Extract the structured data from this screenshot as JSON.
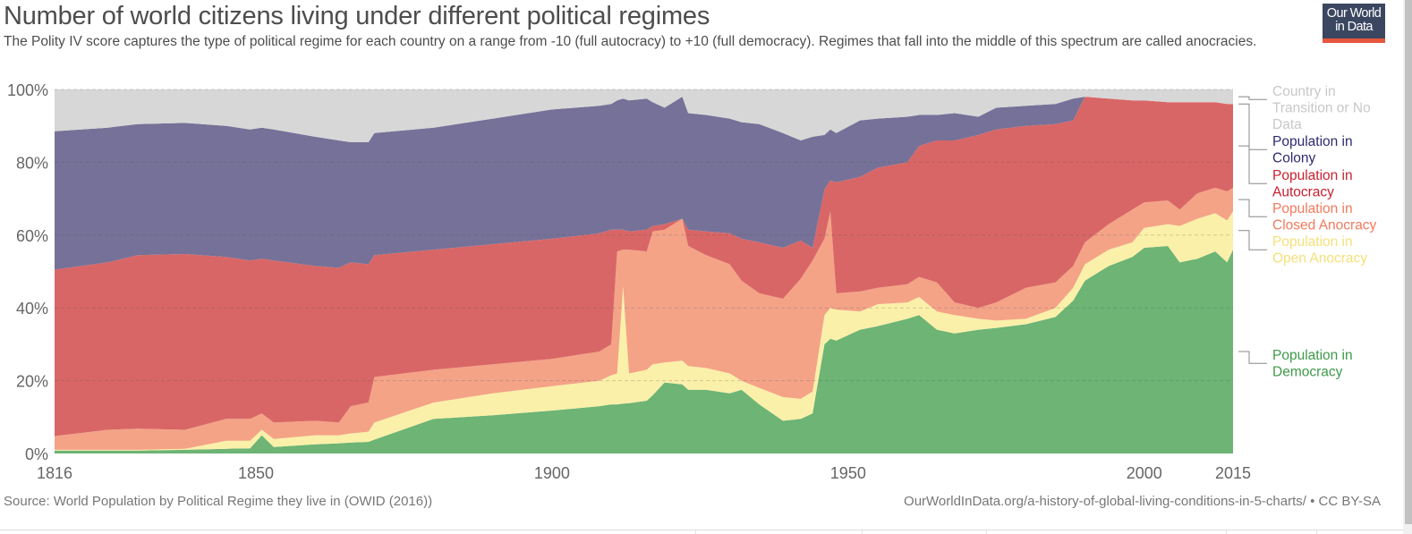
{
  "header": {
    "title": "Number of world citizens living under different political regimes",
    "subtitle": "The Polity IV score captures the type of political regime for each country on a range from -10 (full autocracy) to +10 (full democracy). Regimes that fall into the middle of this spectrum are called anocracies.",
    "logo_line1": "Our World",
    "logo_line2": "in Data",
    "logo_colors": {
      "background": "#3b4761",
      "bar": "#e5563f"
    }
  },
  "footer": {
    "source": "Source: World Population by Political Regime they live in (OWID (2016))",
    "credit": "OurWorldInData.org/a-history-of-global-living-conditions-in-5-charts/ • CC BY-SA"
  },
  "chart_data": {
    "type": "area",
    "stacked": true,
    "relative": true,
    "title": "Number of world citizens living under different political regimes",
    "xlabel": "",
    "ylabel": "",
    "xlim": [
      1816,
      2015
    ],
    "ylim": [
      0,
      100
    ],
    "grid": true,
    "legend_position": "right",
    "x_ticks": [
      {
        "value": 1816,
        "label": "1816"
      },
      {
        "value": 1850,
        "label": "1850"
      },
      {
        "value": 1900,
        "label": "1900"
      },
      {
        "value": 1950,
        "label": "1950"
      },
      {
        "value": 2000,
        "label": "2000"
      },
      {
        "value": 2015,
        "label": "2015"
      }
    ],
    "y_ticks": [
      {
        "value": 0,
        "label": "0%"
      },
      {
        "value": 20,
        "label": "20%"
      },
      {
        "value": 40,
        "label": "40%"
      },
      {
        "value": 60,
        "label": "60%"
      },
      {
        "value": 80,
        "label": "80%"
      },
      {
        "value": 100,
        "label": "100%"
      }
    ],
    "x": [
      1816,
      1825,
      1830,
      1838,
      1845,
      1849,
      1851,
      1853,
      1860,
      1864,
      1866,
      1869,
      1870,
      1880,
      1890,
      1900,
      1908,
      1910,
      1911,
      1912,
      1913,
      1916,
      1917,
      1919,
      1922,
      1923,
      1926,
      1930,
      1932,
      1935,
      1939,
      1942,
      1944,
      1946,
      1947,
      1948,
      1952,
      1955,
      1960,
      1962,
      1965,
      1968,
      1972,
      1975,
      1980,
      1985,
      1988,
      1990,
      1994,
      1998,
      2000,
      2004,
      2006,
      2009,
      2012,
      2014,
      2015
    ],
    "series": [
      {
        "name": "Population in Democracy",
        "legend": [
          "Population in",
          "Democracy"
        ],
        "color": "#6db475",
        "label_color": "#3e9a4a",
        "values": [
          0.8,
          0.8,
          0.8,
          1.0,
          1.3,
          1.4,
          5.0,
          1.8,
          2.5,
          2.8,
          3.0,
          3.2,
          3.8,
          9.5,
          10.5,
          11.8,
          13.0,
          13.5,
          13.5,
          13.7,
          13.8,
          14.5,
          16.0,
          19.5,
          19.0,
          17.5,
          17.5,
          16.5,
          17.5,
          13.5,
          9.0,
          9.5,
          11.0,
          30.0,
          31.5,
          31.0,
          34.0,
          35.0,
          37.0,
          38.0,
          34.0,
          33.0,
          34.0,
          34.5,
          35.5,
          37.5,
          42.0,
          47.5,
          51.5,
          54.0,
          56.5,
          57.0,
          52.5,
          53.5,
          55.5,
          52.5,
          56.0
        ]
      },
      {
        "name": "Population in Open Anocracy",
        "legend": [
          "Population in",
          "Open Anocracy"
        ],
        "color": "#fbf0a9",
        "label_color": "#f5e07a",
        "values": [
          0.2,
          0.2,
          0.2,
          0.3,
          2.2,
          2.1,
          1.5,
          2.2,
          2.5,
          2.2,
          2.5,
          2.8,
          4.7,
          4.5,
          6.0,
          6.7,
          7.0,
          8.0,
          8.5,
          32.3,
          8.2,
          8.5,
          8.5,
          5.5,
          6.5,
          6.5,
          6.0,
          5.5,
          2.5,
          4.5,
          6.5,
          5.5,
          6.0,
          8.0,
          8.5,
          8.5,
          5.0,
          6.0,
          4.5,
          5.0,
          5.0,
          5.0,
          3.0,
          2.0,
          1.5,
          2.5,
          3.5,
          4.5,
          4.5,
          4.0,
          5.5,
          6.0,
          10.0,
          11.0,
          10.5,
          11.5,
          10.5
        ]
      },
      {
        "name": "Population in Closed Anocracy",
        "legend": [
          "Population in",
          "Closed Anocracy"
        ],
        "color": "#f4a387",
        "label_color": "#f17a5d",
        "values": [
          3.8,
          5.5,
          5.8,
          5.2,
          6.0,
          6.0,
          4.5,
          4.5,
          4.0,
          3.5,
          7.5,
          8.0,
          12.5,
          9.0,
          8.0,
          7.5,
          8.0,
          8.5,
          33.5,
          10.0,
          34.0,
          32.5,
          36.5,
          36.5,
          39.0,
          33.0,
          31.0,
          30.0,
          27.5,
          26.0,
          27.0,
          33.0,
          36.0,
          21.0,
          26.5,
          4.5,
          5.5,
          4.5,
          5.0,
          5.5,
          8.0,
          3.5,
          3.0,
          5.0,
          8.5,
          7.0,
          6.0,
          6.0,
          7.0,
          9.0,
          7.0,
          6.5,
          4.5,
          7.0,
          7.0,
          8.0,
          6.5
        ]
      },
      {
        "name": "Population in Autocracy",
        "legend": [
          "Population in",
          "Autocracy"
        ],
        "color": "#d96666",
        "label_color": "#c8202f",
        "values": [
          45.7,
          46.0,
          47.7,
          48.3,
          44.5,
          43.5,
          42.5,
          44.5,
          42.5,
          42.5,
          39.5,
          38.0,
          33.5,
          33.0,
          33.0,
          33.0,
          32.5,
          31.5,
          6.0,
          5.5,
          5.0,
          6.0,
          1.5,
          1.5,
          0.0,
          4.5,
          6.5,
          8.5,
          11.5,
          14.0,
          14.0,
          10.5,
          3.5,
          13.5,
          8.5,
          30.5,
          31.5,
          33.0,
          33.5,
          36.0,
          39.0,
          44.5,
          47.5,
          47.5,
          44.5,
          43.5,
          40.0,
          40.0,
          34.5,
          30.0,
          28.0,
          27.0,
          29.5,
          25.0,
          23.5,
          24.0,
          23.0
        ]
      },
      {
        "name": "Population in Colony",
        "legend": [
          "Population in",
          "Colony"
        ],
        "color": "#767198",
        "label_color": "#2e2a6f",
        "values": [
          38.0,
          37.0,
          36.0,
          36.0,
          36.0,
          36.0,
          36.0,
          36.0,
          35.5,
          35.0,
          33.0,
          33.5,
          33.5,
          33.5,
          34.5,
          35.5,
          35.0,
          34.5,
          35.5,
          36.0,
          36.0,
          36.0,
          34.0,
          32.0,
          33.5,
          32.0,
          32.0,
          31.5,
          32.0,
          32.5,
          31.5,
          27.5,
          30.5,
          15.0,
          14.0,
          13.5,
          15.5,
          13.5,
          12.5,
          8.5,
          7.0,
          7.5,
          5.0,
          6.0,
          5.5,
          5.5,
          6.0,
          0.0,
          0.0,
          0.0,
          0.0,
          0.0,
          0.0,
          0.0,
          0.0,
          0.0,
          0.0
        ]
      },
      {
        "name": "Country in Transition or No Data",
        "legend": [
          "Country in",
          "Transition or No",
          "Data"
        ],
        "color": "#d7d7d7",
        "label_color": "#c8c8c8",
        "values": [
          11.5,
          10.5,
          9.5,
          9.2,
          10.0,
          11.0,
          10.5,
          11.0,
          13.0,
          14.0,
          14.5,
          14.5,
          12.0,
          10.5,
          8.0,
          5.5,
          4.5,
          4.0,
          3.0,
          2.5,
          3.0,
          2.5,
          3.5,
          5.0,
          2.0,
          6.5,
          7.0,
          8.0,
          9.0,
          9.5,
          12.0,
          14.0,
          13.0,
          12.5,
          11.0,
          12.0,
          8.5,
          8.0,
          7.5,
          7.0,
          7.0,
          6.5,
          7.5,
          5.0,
          4.5,
          4.0,
          2.5,
          2.0,
          2.5,
          3.0,
          3.0,
          3.5,
          3.5,
          3.5,
          3.5,
          4.0,
          4.0
        ]
      }
    ]
  }
}
